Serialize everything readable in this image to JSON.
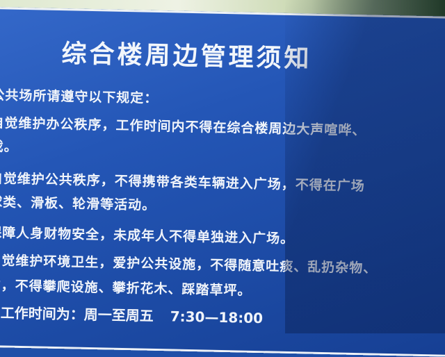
{
  "sign": {
    "title": "综合楼周边管理须知",
    "intro": "公共场所请遵守以下规定：",
    "rules": [
      "自觉维护办公秩序，工作时间内不得在综合楼周边大声喧哗、",
      "戏。",
      "自觉维护公共秩序，不得携带各类车辆进入广场，不得在广场",
      "球类、滑板、轮滑等活动。",
      "保障人身财物安全，未成年人不得单独进入广场。",
      "、觉维护环境卫生，爱护公共设施，不得随意吐痰、乱扔杂物、",
      "物，不得攀爬设施、攀折花木、踩踏草坪。"
    ],
    "hours_label": "常工作时间为：周一至周五",
    "hours_time": "7:30—18:00"
  },
  "colors": {
    "sign_blue": "#2456b6",
    "border_white": "#eef2f7",
    "text_white": "#f0f4fa"
  }
}
